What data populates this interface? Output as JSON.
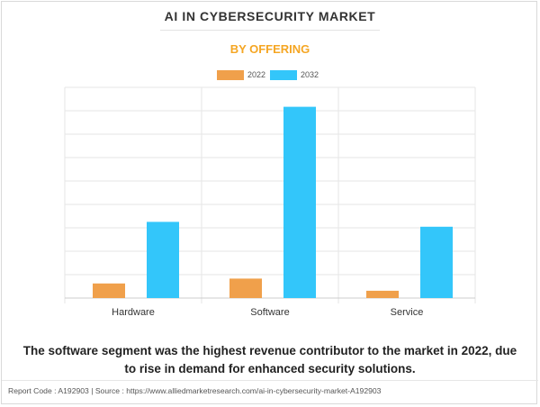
{
  "title": "AI IN CYBERSECURITY MARKET",
  "subtitle": "BY OFFERING",
  "caption": "The software segment was the highest revenue contributor to the market in 2022, due to rise in demand for enhanced security solutions.",
  "footer": "Report Code : A192903  |  Source : https://www.alliedmarketresearch.com/ai-in-cybersecurity-market-A192903",
  "colors": {
    "title": "#333333",
    "subtitle": "#f5a623",
    "series_2022": "#f0a04b",
    "series_2032": "#33c6fa",
    "grid": "#e6e6e6",
    "axis": "#cccccc"
  },
  "chart_data": {
    "type": "bar",
    "categories": [
      "Hardware",
      "Software",
      "Service"
    ],
    "series": [
      {
        "name": "2022",
        "values": [
          1.8,
          2.4,
          0.9
        ]
      },
      {
        "name": "2032",
        "values": [
          9.4,
          23.6,
          8.8
        ]
      }
    ],
    "ylim": [
      0,
      26
    ],
    "grid": true,
    "legend": "top-center",
    "axis_labels_shown": false
  }
}
